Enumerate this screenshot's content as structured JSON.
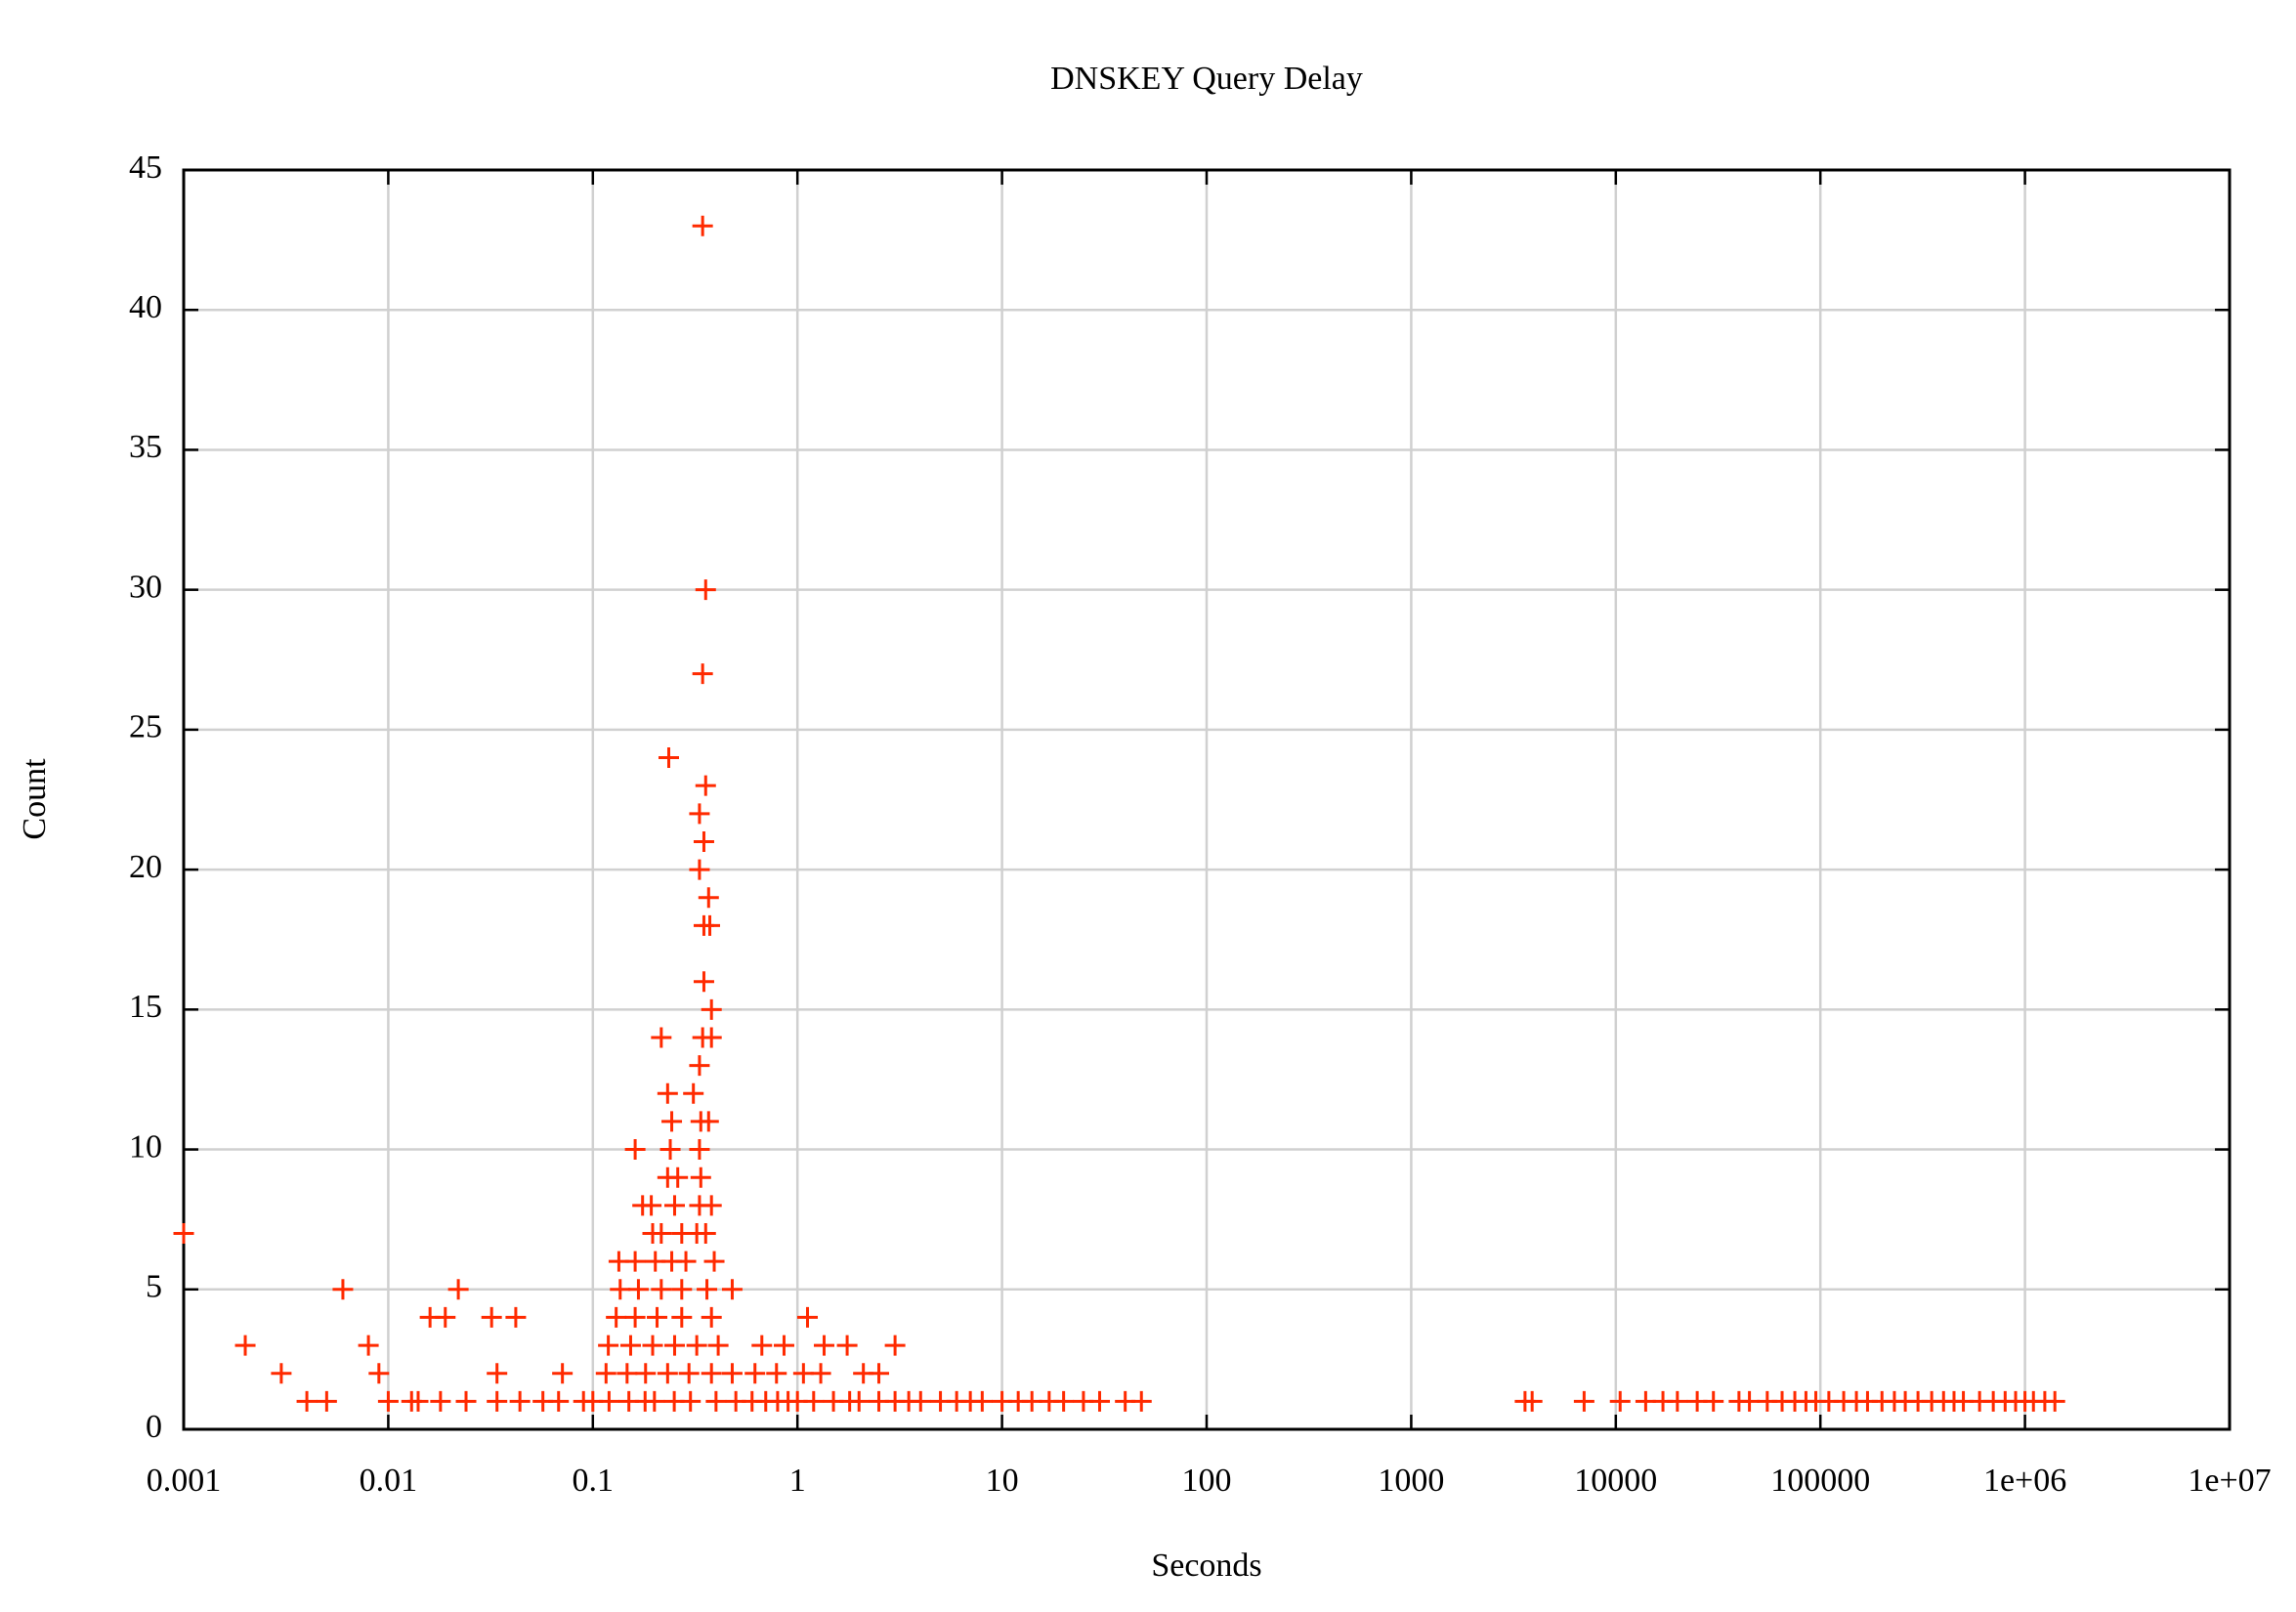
{
  "chart_data": {
    "type": "scatter",
    "title": "DNSKEY Query Delay",
    "x_label": "Seconds",
    "y_label": "Count",
    "log_x": true,
    "grid": true,
    "color": "#ff2a00",
    "xlim": [
      0.001,
      10000000
    ],
    "ylim": [
      0,
      45
    ],
    "xticks": [
      0.001,
      0.01,
      0.1,
      1,
      10,
      100,
      1000,
      10000,
      100000,
      {
        "value": 1000000,
        "label": "1e+06"
      },
      {
        "value": 10000000,
        "label": "1e+07"
      }
    ],
    "yticks": [
      0,
      5,
      10,
      15,
      20,
      25,
      30,
      35,
      40,
      45
    ],
    "x": [
      0.344,
      0.356,
      0.344,
      0.235,
      0.356,
      0.332,
      0.349,
      0.332,
      0.368,
      0.349,
      0.373,
      0.349,
      0.38,
      0.216,
      0.344,
      0.38,
      0.332,
      0.232,
      0.31,
      0.243,
      0.337,
      0.368,
      0.161,
      0.239,
      0.332,
      0.232,
      0.26,
      0.337,
      0.175,
      0.193,
      0.251,
      0.332,
      0.38,
      0.001,
      0.196,
      0.216,
      0.272,
      0.322,
      0.356,
      0.134,
      0.161,
      0.202,
      0.243,
      0.285,
      0.392,
      0.006,
      0.022,
      0.136,
      0.167,
      0.216,
      0.272,
      0.361,
      0.48,
      0.016,
      0.019,
      0.032,
      0.042,
      0.13,
      0.161,
      0.206,
      0.272,
      0.38,
      1.12,
      0.002,
      0.008,
      0.119,
      0.153,
      0.196,
      0.251,
      0.322,
      0.41,
      0.67,
      0.86,
      1.35,
      1.75,
      3.0,
      0.003,
      0.009,
      0.034,
      0.071,
      0.116,
      0.147,
      0.181,
      0.232,
      0.295,
      0.38,
      0.48,
      0.62,
      0.79,
      1.07,
      1.3,
      2.1,
      2.5,
      0.004,
      0.005,
      0.01,
      0.013,
      0.014,
      0.018,
      0.024,
      0.034,
      0.044,
      0.057,
      0.068,
      0.09,
      0.1,
      0.12,
      0.15,
      0.18,
      0.2,
      0.25,
      0.3,
      0.4,
      0.5,
      0.6,
      0.7,
      0.8,
      0.9,
      1,
      1.2,
      1.5,
      1.8,
      2,
      2.5,
      3,
      3.5,
      4,
      5,
      6,
      7,
      8,
      10,
      12,
      14,
      17,
      20,
      25,
      30,
      40,
      48,
      3600,
      3900,
      7000,
      10500,
      14000,
      17000,
      20000,
      25000,
      30000,
      40000,
      45000,
      55000,
      65000,
      75000,
      85000,
      95000,
      110000,
      130000,
      150000,
      170000,
      200000,
      230000,
      260000,
      300000,
      350000,
      400000,
      450000,
      500000,
      600000,
      700000,
      800000,
      900000,
      1000000,
      1100000,
      1250000,
      1400000
    ],
    "values": [
      43,
      30,
      27,
      24,
      23,
      22,
      21,
      20,
      19,
      18,
      18,
      16,
      15,
      14,
      14,
      14,
      13,
      12,
      12,
      11,
      11,
      11,
      10,
      10,
      10,
      9,
      9,
      9,
      8,
      8,
      8,
      8,
      8,
      7,
      7,
      7,
      7,
      7,
      7,
      6,
      6,
      6,
      6,
      6,
      6,
      5,
      5,
      5,
      5,
      5,
      5,
      5,
      5,
      4,
      4,
      4,
      4,
      4,
      4,
      4,
      4,
      4,
      4,
      3,
      3,
      3,
      3,
      3,
      3,
      3,
      3,
      3,
      3,
      3,
      3,
      3,
      2,
      2,
      2,
      2,
      2,
      2,
      2,
      2,
      2,
      2,
      2,
      2,
      2,
      2,
      2,
      2,
      2,
      1,
      1,
      1,
      1,
      1,
      1,
      1,
      1,
      1,
      1,
      1,
      1,
      1,
      1,
      1,
      1,
      1,
      1,
      1,
      1,
      1,
      1,
      1,
      1,
      1,
      1,
      1,
      1,
      1,
      1,
      1,
      1,
      1,
      1,
      1,
      1,
      1,
      1,
      1,
      1,
      1,
      1,
      1,
      1,
      1,
      1,
      1,
      1,
      1,
      1,
      1,
      1,
      1,
      1,
      1,
      1,
      1,
      1,
      1,
      1,
      1,
      1,
      1,
      1,
      1,
      1,
      1,
      1,
      1,
      1,
      1,
      1,
      1,
      1,
      1,
      1,
      1,
      1,
      1,
      1,
      1,
      1,
      1
    ]
  }
}
